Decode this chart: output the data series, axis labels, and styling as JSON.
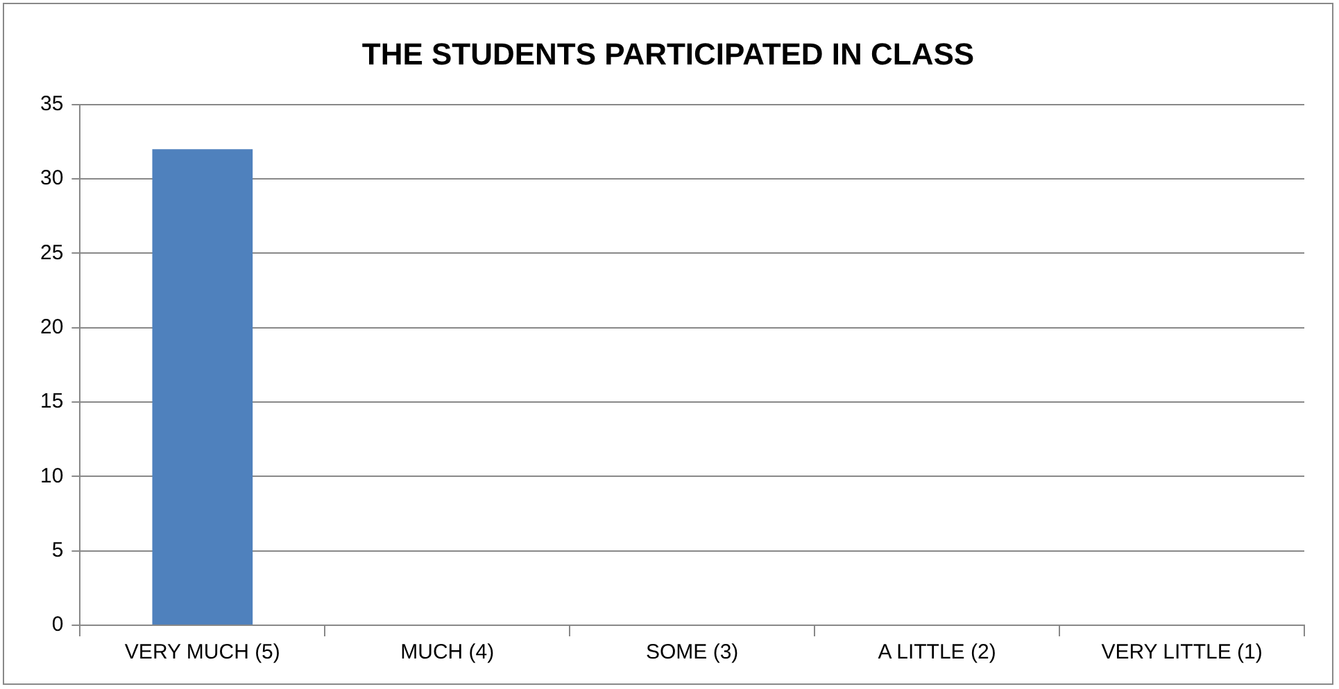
{
  "chart_data": {
    "type": "bar",
    "title": "THE STUDENTS PARTICIPATED IN CLASS",
    "categories": [
      "VERY MUCH (5)",
      "MUCH (4)",
      "SOME (3)",
      "A LITTLE (2)",
      "VERY LITTLE (1)"
    ],
    "values": [
      32,
      0,
      0,
      0,
      0
    ],
    "color": "#4f81bd",
    "ylim": [
      0,
      35
    ],
    "yticks": [
      0,
      5,
      10,
      15,
      20,
      25,
      30,
      35
    ],
    "grid": "y",
    "legend": false
  }
}
